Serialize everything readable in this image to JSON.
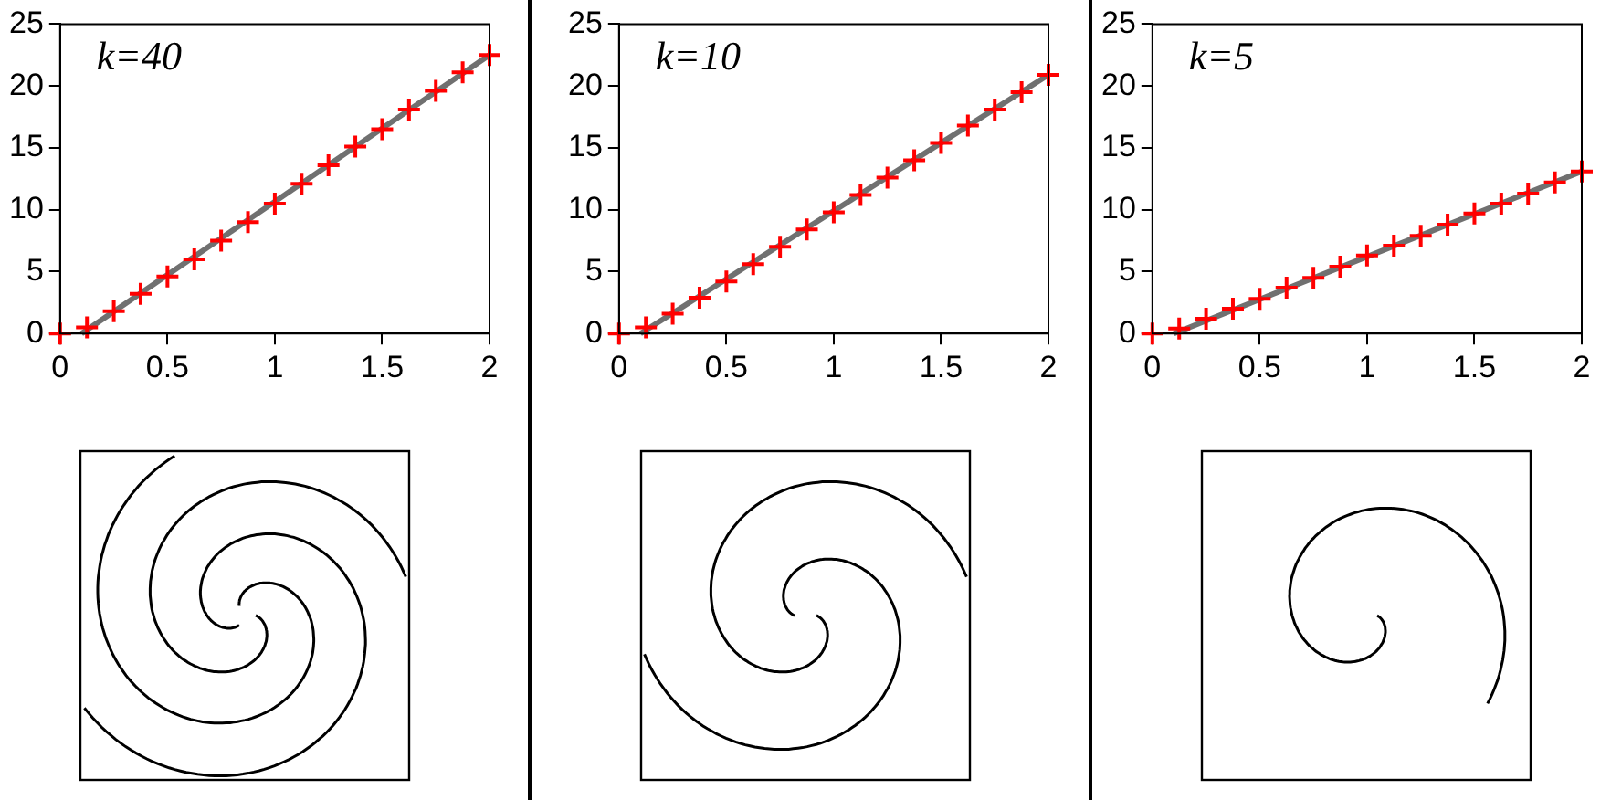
{
  "chart_data": [
    {
      "type": "line",
      "xlim": [
        0,
        2
      ],
      "xticks": [
        0,
        0.5,
        1,
        1.5,
        2
      ],
      "ylim": [
        0,
        25
      ],
      "yticks": [
        0,
        5,
        10,
        15,
        20,
        25
      ],
      "grid": false,
      "legend": false,
      "annotations": [
        "k=40"
      ],
      "series": [
        {
          "type": "line",
          "color": "#707070",
          "marker": "none",
          "x": [
            0.1,
            2
          ],
          "values": [
            0,
            22.5
          ]
        },
        {
          "type": "scatter",
          "color": "#ff0000",
          "marker": "cross",
          "x": [
            0,
            0.125,
            0.25,
            0.375,
            0.5,
            0.625,
            0.75,
            0.875,
            1,
            1.125,
            1.25,
            1.375,
            1.5,
            1.625,
            1.75,
            1.875,
            2
          ],
          "values": [
            0,
            0.5,
            1.8,
            3.2,
            4.6,
            6.0,
            7.5,
            9.0,
            10.5,
            12.1,
            13.6,
            15.1,
            16.5,
            18.1,
            19.6,
            21.1,
            22.5
          ]
        }
      ]
    },
    {
      "type": "line",
      "xlim": [
        0,
        2
      ],
      "xticks": [
        0,
        0.5,
        1,
        1.5,
        2
      ],
      "ylim": [
        0,
        25
      ],
      "yticks": [
        0,
        5,
        10,
        15,
        20,
        25
      ],
      "grid": false,
      "legend": false,
      "annotations": [
        "k=10"
      ],
      "series": [
        {
          "type": "line",
          "color": "#707070",
          "marker": "none",
          "x": [
            0.1,
            2
          ],
          "values": [
            0,
            20.9
          ]
        },
        {
          "type": "scatter",
          "color": "#ff0000",
          "marker": "cross",
          "x": [
            0,
            0.125,
            0.25,
            0.375,
            0.5,
            0.625,
            0.75,
            0.875,
            1,
            1.125,
            1.25,
            1.375,
            1.5,
            1.625,
            1.75,
            1.875,
            2
          ],
          "values": [
            0,
            0.5,
            1.6,
            2.9,
            4.2,
            5.6,
            7.0,
            8.4,
            9.8,
            11.2,
            12.6,
            14.0,
            15.4,
            16.8,
            18.1,
            19.5,
            20.9
          ]
        }
      ]
    },
    {
      "type": "line",
      "xlim": [
        0,
        2
      ],
      "xticks": [
        0,
        0.5,
        1,
        1.5,
        2
      ],
      "ylim": [
        0,
        25
      ],
      "yticks": [
        0,
        5,
        10,
        15,
        20,
        25
      ],
      "grid": false,
      "legend": false,
      "annotations": [
        "k=5"
      ],
      "series": [
        {
          "type": "line",
          "color": "#707070",
          "marker": "none",
          "x": [
            0.1,
            2
          ],
          "values": [
            0,
            13.1
          ]
        },
        {
          "type": "scatter",
          "color": "#ff0000",
          "marker": "cross",
          "x": [
            0,
            0.125,
            0.25,
            0.375,
            0.5,
            0.625,
            0.75,
            0.875,
            1,
            1.125,
            1.25,
            1.375,
            1.5,
            1.625,
            1.75,
            1.875,
            2
          ],
          "values": [
            0,
            0.4,
            1.2,
            2.0,
            2.8,
            3.7,
            4.5,
            5.4,
            6.3,
            7.1,
            7.9,
            8.8,
            9.7,
            10.5,
            11.3,
            12.2,
            13.1
          ]
        }
      ]
    }
  ]
}
